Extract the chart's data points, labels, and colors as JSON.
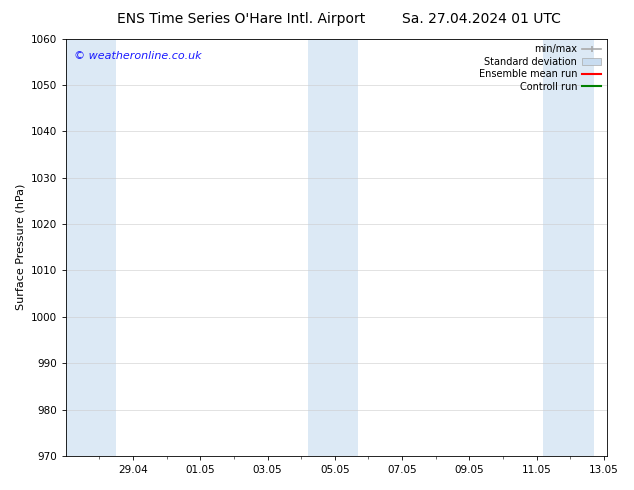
{
  "title_left": "ENS Time Series O'Hare Intl. Airport",
  "title_right": "Sa. 27.04.2024 01 UTC",
  "ylabel": "Surface Pressure (hPa)",
  "watermark": "© weatheronline.co.uk",
  "watermark_color": "#1a1aff",
  "ylim": [
    970,
    1060
  ],
  "yticks": [
    970,
    980,
    990,
    1000,
    1010,
    1020,
    1030,
    1040,
    1050,
    1060
  ],
  "xtick_labels": [
    "29.04",
    "01.05",
    "03.05",
    "05.05",
    "07.05",
    "09.05",
    "11.05",
    "13.05"
  ],
  "shade_color": "#dce9f5",
  "background_color": "#ffffff",
  "grid_color": "#cccccc",
  "legend_items": [
    {
      "label": "min/max",
      "color": "#aaaaaa",
      "type": "line_with_caps"
    },
    {
      "label": "Standard deviation",
      "color": "#c8dcf0",
      "type": "filled"
    },
    {
      "label": "Ensemble mean run",
      "color": "#ff0000",
      "type": "line"
    },
    {
      "label": "Controll run",
      "color": "#008000",
      "type": "line"
    }
  ],
  "title_fontsize": 10,
  "axis_fontsize": 8,
  "tick_fontsize": 7.5,
  "watermark_fontsize": 8
}
